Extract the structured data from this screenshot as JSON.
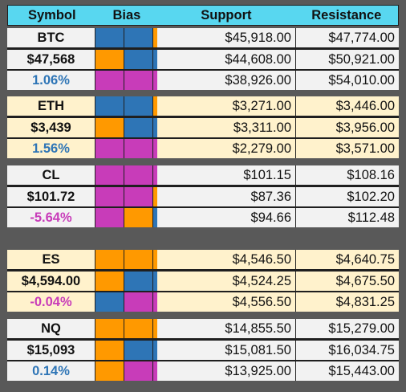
{
  "colors": {
    "blue": "#2e75b6",
    "orange": "#ff9900",
    "magenta": "#c83cb9",
    "header": "#58d7f0",
    "white_row": "#f2f2f2",
    "cream_row": "#fff2cc",
    "positive_text": "#2e75b6",
    "negative_text": "#c83cb9"
  },
  "header": {
    "symbol": "Symbol",
    "bias": "Bias",
    "support": "Support",
    "resistance": "Resistance"
  },
  "groups": [
    {
      "theme": "white",
      "rows": [
        {
          "label": "BTC",
          "label_class": "",
          "bias": [
            "blue",
            "blue",
            "orange"
          ],
          "support": "$45,918.00",
          "resistance": "$47,774.00"
        },
        {
          "label": "$47,568",
          "label_class": "",
          "bias": [
            "orange",
            "blue",
            "blue"
          ],
          "support": "$44,608.00",
          "resistance": "$50,921.00"
        },
        {
          "label": "1.06%",
          "label_class": "up",
          "bias": [
            "magenta",
            "magenta",
            "magenta"
          ],
          "support": "$38,926.00",
          "resistance": "$54,010.00"
        }
      ]
    },
    {
      "theme": "cream",
      "rows": [
        {
          "label": "ETH",
          "label_class": "",
          "bias": [
            "blue",
            "blue",
            "orange"
          ],
          "support": "$3,271.00",
          "resistance": "$3,446.00"
        },
        {
          "label": "$3,439",
          "label_class": "",
          "bias": [
            "orange",
            "blue",
            "blue"
          ],
          "support": "$3,311.00",
          "resistance": "$3,956.00"
        },
        {
          "label": "1.56%",
          "label_class": "up",
          "bias": [
            "magenta",
            "magenta",
            "magenta"
          ],
          "support": "$2,279.00",
          "resistance": "$3,571.00"
        }
      ]
    },
    {
      "theme": "white",
      "rows": [
        {
          "label": "CL",
          "label_class": "",
          "bias": [
            "magenta",
            "magenta",
            "magenta"
          ],
          "support": "$101.15",
          "resistance": "$108.16"
        },
        {
          "label": "$101.72",
          "label_class": "",
          "bias": [
            "magenta",
            "magenta",
            "orange"
          ],
          "support": "$87.36",
          "resistance": "$102.20"
        },
        {
          "label": "-5.64%",
          "label_class": "down",
          "bias": [
            "magenta",
            "orange",
            "blue"
          ],
          "support": "$94.66",
          "resistance": "$112.48"
        }
      ]
    },
    {
      "theme": "cream",
      "rows": [
        {
          "label": "ES",
          "label_class": "",
          "bias": [
            "orange",
            "orange",
            "orange"
          ],
          "support": "$4,546.50",
          "resistance": "$4,640.75"
        },
        {
          "label": "$4,594.00",
          "label_class": "",
          "bias": [
            "orange",
            "blue",
            "blue"
          ],
          "support": "$4,524.25",
          "resistance": "$4,675.50"
        },
        {
          "label": "-0.04%",
          "label_class": "down",
          "bias": [
            "blue",
            "magenta",
            "magenta"
          ],
          "support": "$4,556.50",
          "resistance": "$4,831.25"
        }
      ]
    },
    {
      "theme": "white",
      "rows": [
        {
          "label": "NQ",
          "label_class": "",
          "bias": [
            "orange",
            "orange",
            "orange"
          ],
          "support": "$14,855.50",
          "resistance": "$15,279.00"
        },
        {
          "label": "$15,093",
          "label_class": "",
          "bias": [
            "orange",
            "blue",
            "blue"
          ],
          "support": "$15,081.50",
          "resistance": "$16,034.75"
        },
        {
          "label": "0.14%",
          "label_class": "up",
          "bias": [
            "orange",
            "magenta",
            "magenta"
          ],
          "support": "$13,925.00",
          "resistance": "$15,443.00"
        }
      ]
    }
  ]
}
